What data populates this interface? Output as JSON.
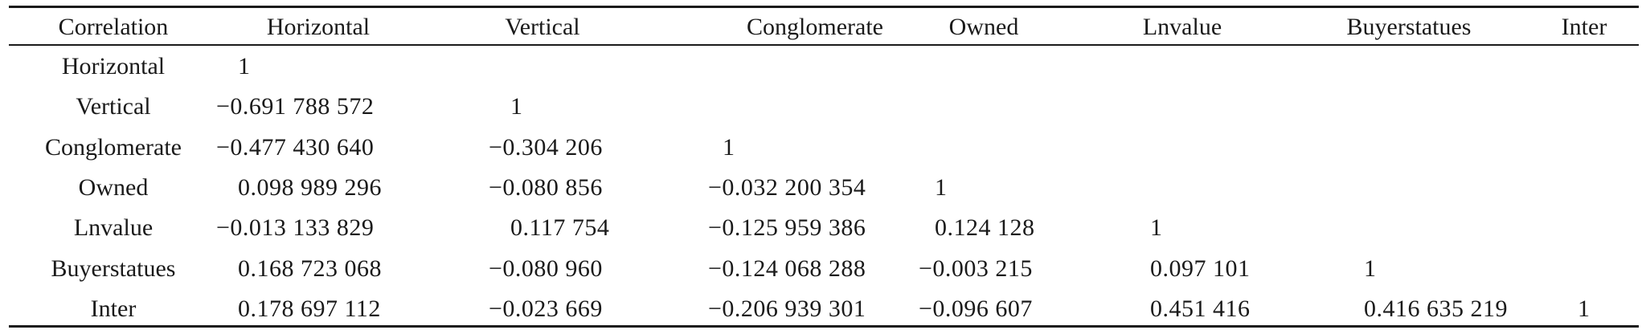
{
  "table": {
    "headers": [
      "Correlation",
      "Horizontal",
      "Vertical",
      "Conglomerate",
      "Owned",
      "Lnvalue",
      "Buyerstatues",
      "Inter"
    ],
    "rows": [
      {
        "label": "Horizontal",
        "values": [
          "1",
          "",
          "",
          "",
          "",
          "",
          ""
        ]
      },
      {
        "label": "Vertical",
        "values": [
          "−0.691 788 572",
          "1",
          "",
          "",
          "",
          "",
          ""
        ]
      },
      {
        "label": "Conglomerate",
        "values": [
          "−0.477 430 640",
          "−0.304 206",
          "1",
          "",
          "",
          "",
          ""
        ]
      },
      {
        "label": "Owned",
        "values": [
          "0.098 989 296",
          "−0.080 856",
          "−0.032 200 354",
          "1",
          "",
          "",
          ""
        ]
      },
      {
        "label": "Lnvalue",
        "values": [
          "−0.013 133 829",
          "0.117 754",
          "−0.125 959 386",
          "0.124 128",
          "1",
          "",
          ""
        ]
      },
      {
        "label": "Buyerstatues",
        "values": [
          "0.168 723 068",
          "−0.080 960",
          "−0.124 068 288",
          "−0.003 215",
          "0.097 101",
          "1",
          ""
        ]
      },
      {
        "label": "Inter",
        "values": [
          "0.178 697 112",
          "−0.023 669",
          "−0.206 939 301",
          "−0.096 607",
          "0.451 416",
          "0.416 635 219",
          "1"
        ]
      }
    ]
  }
}
